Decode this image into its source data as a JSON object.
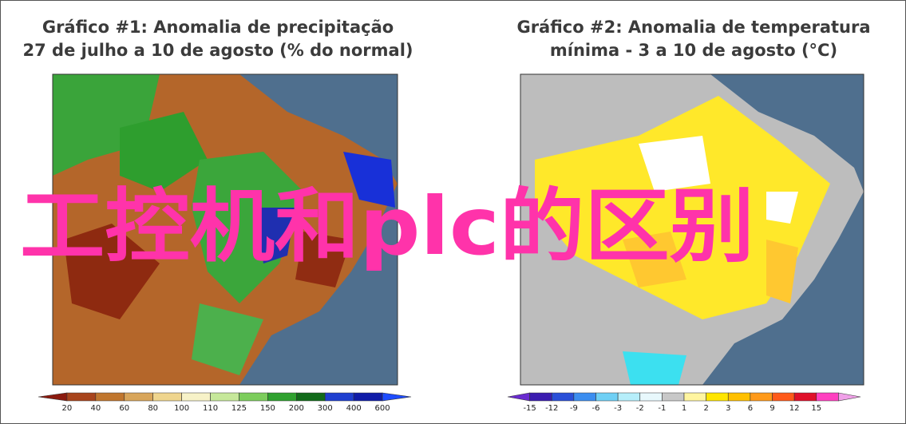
{
  "panels": [
    {
      "title": [
        "Gráfico #1: Anomalia de precipitação",
        "27 de julho a 10 de agosto (% do normal)"
      ],
      "colorbar": {
        "labels": [
          20,
          40,
          60,
          80,
          100,
          110,
          125,
          150,
          200,
          300,
          400,
          600
        ],
        "colors": [
          "#8b1a0e",
          "#a8441c",
          "#c0762e",
          "#d8a55a",
          "#efd58e",
          "#f7f2c8",
          "#c6e89a",
          "#7ccd5c",
          "#2fa12f",
          "#126b1a",
          "#1f3fd0",
          "#101ca8",
          "#1e4cff"
        ]
      }
    },
    {
      "title": [
        "Gráfico #2: Anomalia de temperatura",
        "mínima - 3 a 10 de agosto (°C)"
      ],
      "colorbar": {
        "labels": [
          -15,
          -12,
          -9,
          -6,
          -3,
          -2,
          -1,
          1,
          2,
          3,
          6,
          9,
          12,
          15
        ],
        "colors": [
          "#6a2bd0",
          "#3b1cb0",
          "#2a4fd8",
          "#3c8ef0",
          "#6fd0f5",
          "#b6eefa",
          "#e8f8fc",
          "#c8c8c8",
          "#fff5a0",
          "#ffe600",
          "#ffc000",
          "#ff9a1a",
          "#ff5a1a",
          "#e0102a",
          "#ff40c0",
          "#f0a0e8"
        ]
      }
    }
  ],
  "overlay": "工控机和plc的区别"
}
